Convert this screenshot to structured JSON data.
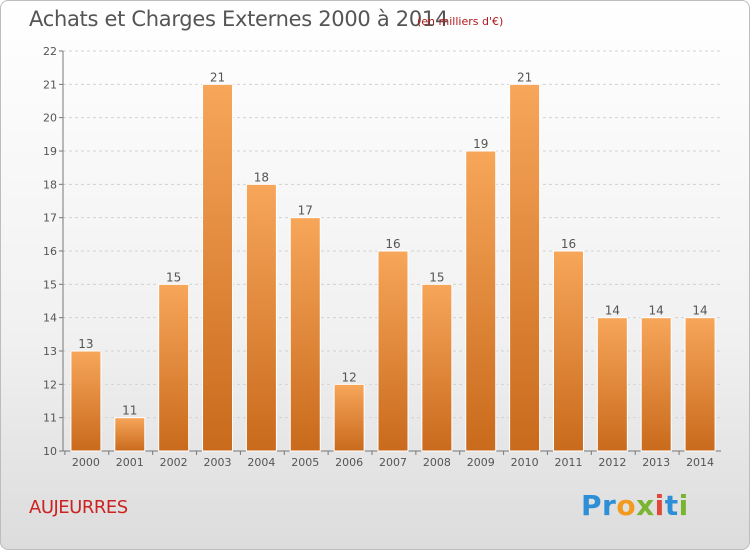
{
  "title": "Achats et Charges Externes 2000 à 2014",
  "unit": "(en milliers d'€)",
  "commune": "AUJEURRES",
  "logo": {
    "letters": [
      "P",
      "r",
      "o",
      "x",
      "i",
      "t",
      "i"
    ],
    "colors": [
      "#2f8fd6",
      "#2f8fd6",
      "#f29a1f",
      "#7ab532",
      "#e0483a",
      "#2f8fd6",
      "#7ab532"
    ]
  },
  "colors": {
    "bar_top": "#f7a65a",
    "bar_bottom": "#c96a1c",
    "title": "#555555",
    "commune": "#cc2222",
    "unit": "#b01818"
  },
  "chart_data": {
    "type": "bar",
    "categories": [
      "2000",
      "2001",
      "2002",
      "2003",
      "2004",
      "2005",
      "2006",
      "2007",
      "2008",
      "2009",
      "2010",
      "2011",
      "2012",
      "2013",
      "2014"
    ],
    "values": [
      13,
      11,
      15,
      21,
      18,
      17,
      12,
      16,
      15,
      19,
      21,
      16,
      14,
      14,
      14
    ],
    "ylim": [
      10,
      22
    ],
    "yticks": [
      10,
      11,
      12,
      13,
      14,
      15,
      16,
      17,
      18,
      19,
      20,
      21,
      22
    ],
    "xlabel": "",
    "ylabel": "",
    "grid": true
  }
}
